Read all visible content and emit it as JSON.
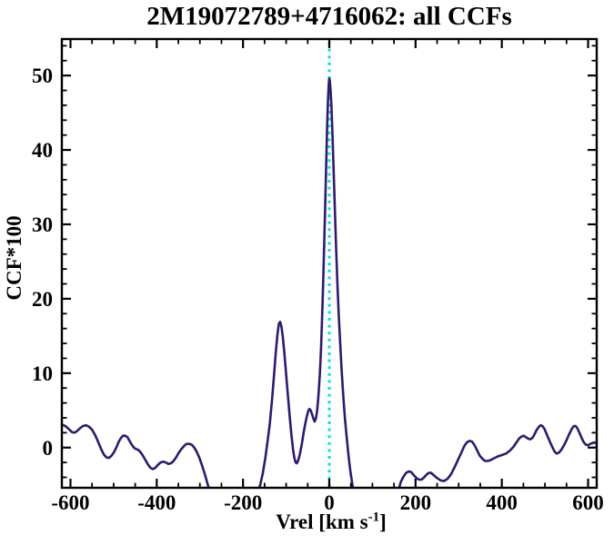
{
  "figure": {
    "background": "#ffffff"
  },
  "chart_data": {
    "type": "line",
    "title": "2M19072789+4716062: all CCFs",
    "xlabel": "Vrel [km s⁻¹]",
    "xlabel_parts": {
      "base": "Vrel [km s",
      "sup": "-1",
      "close": "]"
    },
    "ylabel": "CCF*100",
    "xlim": [
      -620,
      620
    ],
    "ylim": [
      -5.4,
      54.9
    ],
    "x_major_ticks": [
      -600,
      -400,
      -200,
      0,
      200,
      400,
      600
    ],
    "x_tick_labels": [
      "-600",
      "-400",
      "-200",
      "0",
      "200",
      "400",
      "600"
    ],
    "x_minor_step": 50,
    "y_major_ticks": [
      0,
      10,
      20,
      30,
      40,
      50
    ],
    "y_tick_labels": [
      "0",
      "10",
      "20",
      "30",
      "40",
      "50"
    ],
    "y_minor_step": 2,
    "grid": false,
    "legend_position": "none",
    "annotations": [
      {
        "type": "vline",
        "x": 0,
        "style": "dotted",
        "color": "#00e0e0"
      }
    ],
    "colors": {
      "curve": "#2e1a6e",
      "axis": "#000000",
      "vline": "#00e0e0",
      "background": "#ffffff"
    },
    "peaks": [
      {
        "x": 0,
        "y": 49.6,
        "note": "main CCF peak"
      },
      {
        "x": -114,
        "y": 16.9,
        "note": "secondary peak"
      },
      {
        "x": -47,
        "y": 5.2,
        "note": "small shoulder bump"
      }
    ],
    "series": [
      {
        "name": "CCF",
        "points": [
          [
            -620,
            3.1
          ],
          [
            -612,
            2.9
          ],
          [
            -604,
            2.5
          ],
          [
            -597,
            2.1
          ],
          [
            -591,
            2.0
          ],
          [
            -585,
            2.2
          ],
          [
            -578,
            2.6
          ],
          [
            -571,
            2.9
          ],
          [
            -564,
            3.0
          ],
          [
            -557,
            2.8
          ],
          [
            -550,
            2.4
          ],
          [
            -543,
            1.7
          ],
          [
            -536,
            0.8
          ],
          [
            -529,
            -0.2
          ],
          [
            -523,
            -0.9
          ],
          [
            -517,
            -1.3
          ],
          [
            -511,
            -1.4
          ],
          [
            -505,
            -1.1
          ],
          [
            -499,
            -0.6
          ],
          [
            -493,
            0.1
          ],
          [
            -488,
            0.8
          ],
          [
            -483,
            1.3
          ],
          [
            -478,
            1.6
          ],
          [
            -473,
            1.6
          ],
          [
            -468,
            1.4
          ],
          [
            -463,
            0.9
          ],
          [
            -458,
            0.4
          ],
          [
            -453,
            0.0
          ],
          [
            -448,
            -0.2
          ],
          [
            -443,
            -0.3
          ],
          [
            -438,
            -0.6
          ],
          [
            -433,
            -1.0
          ],
          [
            -427,
            -1.6
          ],
          [
            -421,
            -2.2
          ],
          [
            -415,
            -2.7
          ],
          [
            -409,
            -2.9
          ],
          [
            -403,
            -2.7
          ],
          [
            -397,
            -2.3
          ],
          [
            -391,
            -2.0
          ],
          [
            -385,
            -1.9
          ],
          [
            -379,
            -2.0
          ],
          [
            -373,
            -2.2
          ],
          [
            -367,
            -2.1
          ],
          [
            -361,
            -1.8
          ],
          [
            -355,
            -1.3
          ],
          [
            -349,
            -0.7
          ],
          [
            -343,
            -0.2
          ],
          [
            -337,
            0.2
          ],
          [
            -331,
            0.5
          ],
          [
            -325,
            0.5
          ],
          [
            -319,
            0.4
          ],
          [
            -313,
            0.0
          ],
          [
            -307,
            -0.6
          ],
          [
            -301,
            -1.4
          ],
          [
            -295,
            -2.4
          ],
          [
            -289,
            -3.5
          ],
          [
            -283,
            -4.7
          ],
          [
            -277,
            -5.9
          ],
          [
            -270,
            -7.5
          ],
          [
            -262,
            -9.0
          ],
          [
            -252,
            -10.5
          ],
          [
            -240,
            -11.5
          ],
          [
            -225,
            -12.0
          ],
          [
            -210,
            -11.5
          ],
          [
            -196,
            -10.0
          ],
          [
            -184,
            -8.5
          ],
          [
            -174,
            -7.2
          ],
          [
            -166,
            -6.0
          ],
          [
            -160,
            -5.0
          ],
          [
            -154,
            -3.4
          ],
          [
            -148,
            -1.3
          ],
          [
            -143,
            0.9
          ],
          [
            -138,
            3.2
          ],
          [
            -133,
            6.2
          ],
          [
            -128,
            9.8
          ],
          [
            -124,
            12.8
          ],
          [
            -120,
            15.3
          ],
          [
            -117,
            16.6
          ],
          [
            -114,
            16.9
          ],
          [
            -111,
            16.3
          ],
          [
            -108,
            15.0
          ],
          [
            -104,
            12.6
          ],
          [
            -100,
            9.8
          ],
          [
            -96,
            7.0
          ],
          [
            -92,
            4.3
          ],
          [
            -88,
            1.8
          ],
          [
            -84,
            -0.3
          ],
          [
            -81,
            -1.4
          ],
          [
            -78,
            -2.0
          ],
          [
            -75,
            -2.1
          ],
          [
            -72,
            -1.7
          ],
          [
            -68,
            -0.8
          ],
          [
            -64,
            0.4
          ],
          [
            -60,
            1.8
          ],
          [
            -56,
            3.1
          ],
          [
            -52,
            4.2
          ],
          [
            -49,
            4.9
          ],
          [
            -46,
            5.2
          ],
          [
            -43,
            5.0
          ],
          [
            -40,
            4.5
          ],
          [
            -37,
            3.9
          ],
          [
            -34,
            3.5
          ],
          [
            -31,
            3.9
          ],
          [
            -28,
            5.0
          ],
          [
            -25,
            7.0
          ],
          [
            -22,
            9.8
          ],
          [
            -19,
            13.5
          ],
          [
            -16,
            18.5
          ],
          [
            -13,
            24.5
          ],
          [
            -10,
            31.5
          ],
          [
            -7,
            38.5
          ],
          [
            -5,
            43.0
          ],
          [
            -3,
            46.8
          ],
          [
            -1,
            49.0
          ],
          [
            0,
            49.6
          ],
          [
            1,
            49.4
          ],
          [
            3,
            48.0
          ],
          [
            5,
            45.8
          ],
          [
            7,
            42.8
          ],
          [
            10,
            37.5
          ],
          [
            13,
            31.8
          ],
          [
            16,
            26.5
          ],
          [
            19,
            21.8
          ],
          [
            22,
            17.8
          ],
          [
            25,
            14.2
          ],
          [
            28,
            11.0
          ],
          [
            31,
            8.2
          ],
          [
            34,
            5.7
          ],
          [
            37,
            3.5
          ],
          [
            40,
            1.6
          ],
          [
            43,
            -0.2
          ],
          [
            46,
            -1.8
          ],
          [
            49,
            -3.2
          ],
          [
            52,
            -4.4
          ],
          [
            55,
            -5.5
          ],
          [
            60,
            -7.0
          ],
          [
            68,
            -8.8
          ],
          [
            78,
            -10.2
          ],
          [
            90,
            -11.0
          ],
          [
            105,
            -11.2
          ],
          [
            120,
            -11.0
          ],
          [
            135,
            -10.2
          ],
          [
            147,
            -8.8
          ],
          [
            155,
            -7.2
          ],
          [
            161,
            -5.6
          ],
          [
            166,
            -4.6
          ],
          [
            172,
            -3.9
          ],
          [
            178,
            -3.4
          ],
          [
            184,
            -3.2
          ],
          [
            190,
            -3.3
          ],
          [
            196,
            -3.7
          ],
          [
            202,
            -4.1
          ],
          [
            208,
            -4.3
          ],
          [
            214,
            -4.3
          ],
          [
            220,
            -4.0
          ],
          [
            226,
            -3.6
          ],
          [
            231,
            -3.4
          ],
          [
            236,
            -3.4
          ],
          [
            242,
            -3.7
          ],
          [
            250,
            -4.1
          ],
          [
            258,
            -4.4
          ],
          [
            266,
            -4.5
          ],
          [
            274,
            -4.2
          ],
          [
            282,
            -3.6
          ],
          [
            290,
            -2.7
          ],
          [
            298,
            -1.7
          ],
          [
            306,
            -0.7
          ],
          [
            313,
            0.2
          ],
          [
            319,
            0.7
          ],
          [
            325,
            0.9
          ],
          [
            331,
            0.8
          ],
          [
            337,
            0.3
          ],
          [
            343,
            -0.4
          ],
          [
            349,
            -1.1
          ],
          [
            355,
            -1.5
          ],
          [
            361,
            -1.8
          ],
          [
            367,
            -1.8
          ],
          [
            373,
            -1.7
          ],
          [
            380,
            -1.5
          ],
          [
            390,
            -1.2
          ],
          [
            400,
            -1.0
          ],
          [
            410,
            -0.8
          ],
          [
            419,
            -0.4
          ],
          [
            427,
            0.1
          ],
          [
            434,
            0.7
          ],
          [
            440,
            1.2
          ],
          [
            446,
            1.5
          ],
          [
            451,
            1.6
          ],
          [
            456,
            1.4
          ],
          [
            461,
            1.2
          ],
          [
            466,
            1.1
          ],
          [
            471,
            1.3
          ],
          [
            476,
            1.8
          ],
          [
            481,
            2.4
          ],
          [
            486,
            2.8
          ],
          [
            490,
            3.0
          ],
          [
            494,
            2.9
          ],
          [
            499,
            2.5
          ],
          [
            504,
            1.8
          ],
          [
            510,
            1.0
          ],
          [
            516,
            0.2
          ],
          [
            522,
            -0.5
          ],
          [
            527,
            -0.8
          ],
          [
            532,
            -0.7
          ],
          [
            538,
            -0.3
          ],
          [
            544,
            0.3
          ],
          [
            550,
            1.0
          ],
          [
            556,
            1.8
          ],
          [
            562,
            2.5
          ],
          [
            567,
            2.9
          ],
          [
            571,
            2.9
          ],
          [
            575,
            2.6
          ],
          [
            580,
            2.0
          ],
          [
            585,
            1.3
          ],
          [
            590,
            0.7
          ],
          [
            595,
            0.4
          ],
          [
            600,
            0.3
          ],
          [
            605,
            0.5
          ],
          [
            610,
            0.6
          ],
          [
            614,
            0.7
          ],
          [
            617,
            0.6
          ],
          [
            620,
            0.6
          ]
        ]
      }
    ]
  }
}
